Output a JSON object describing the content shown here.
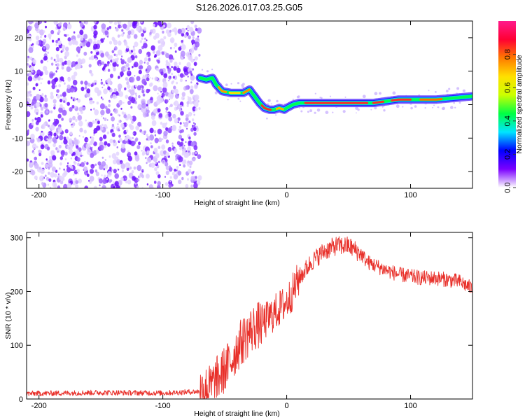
{
  "title": "S126.2026.017.03.25.G05",
  "chart_data": [
    {
      "type": "heatmap",
      "name": "spectrogram",
      "xlabel": "Height of straight line (km)",
      "ylabel": "Frequency (Hz)",
      "xlim": [
        -210,
        150
      ],
      "ylim": [
        -25,
        25
      ],
      "xticks": [
        -200,
        -100,
        0,
        100
      ],
      "yticks": [
        -20,
        -10,
        0,
        10,
        20
      ],
      "xtick_labels": [
        "-200",
        "-100",
        "0",
        "100"
      ],
      "ytick_labels": [
        "-20",
        "-10",
        "0",
        "10",
        "20"
      ],
      "noise_region_x": [
        -210,
        -70
      ],
      "ridge": {
        "x": [
          -70,
          -65,
          -60,
          -57,
          -52,
          -45,
          -40,
          -35,
          -30,
          -26,
          -22,
          -18,
          -14,
          -10,
          -6,
          -2,
          0,
          5,
          10,
          15,
          20,
          30,
          50,
          70,
          80,
          90,
          100,
          110,
          120,
          135,
          150
        ],
        "y": [
          8,
          7.5,
          8,
          6,
          4,
          3.5,
          3.5,
          3.5,
          4.5,
          2.5,
          0.5,
          -1,
          -1.5,
          -1.5,
          -1,
          -1.5,
          -1,
          0,
          0.5,
          0.5,
          0.5,
          0.5,
          0.5,
          0.5,
          1,
          1.5,
          1.5,
          1.5,
          1.5,
          2,
          2.5
        ]
      },
      "colorbar": {
        "label": "Normalized spectral amplitude",
        "range": [
          0,
          1
        ],
        "ticks": [
          0.0,
          0.2,
          0.4,
          0.6,
          0.8
        ],
        "tick_labels": [
          "0.0",
          "0.2",
          "0.4",
          "0.6",
          "0.8"
        ],
        "colors": [
          "#ffffff",
          "#7a00ff",
          "#0000ff",
          "#00e5ff",
          "#00ff44",
          "#ccff00",
          "#ffe000",
          "#ff7a00",
          "#ff0033",
          "#ff1a8c"
        ]
      }
    },
    {
      "type": "line",
      "name": "snr",
      "xlabel": "Height of straight line (km)",
      "ylabel": "SNR (10 * v/v)",
      "xlim": [
        -210,
        150
      ],
      "ylim": [
        0,
        310
      ],
      "xticks": [
        -200,
        -100,
        0,
        100
      ],
      "yticks": [
        0,
        100,
        200,
        300
      ],
      "xtick_labels": [
        "-200",
        "-100",
        "0",
        "100"
      ],
      "ytick_labels": [
        "0",
        "100",
        "200",
        "300"
      ],
      "color": "#e8302a",
      "series": [
        {
          "name": "SNR",
          "x": [
            -210,
            -150,
            -100,
            -70,
            -62,
            -55,
            -50,
            -45,
            -40,
            -35,
            -30,
            -25,
            -20,
            -15,
            -10,
            -5,
            0,
            5,
            10,
            20,
            30,
            40,
            50,
            60,
            65,
            70,
            80,
            90,
            100,
            110,
            120,
            130,
            140,
            150
          ],
          "y": [
            10,
            12,
            11,
            14,
            20,
            40,
            55,
            70,
            95,
            110,
            125,
            135,
            140,
            150,
            160,
            170,
            180,
            200,
            225,
            255,
            275,
            285,
            285,
            270,
            255,
            250,
            240,
            232,
            228,
            225,
            225,
            222,
            218,
            205
          ]
        }
      ]
    }
  ]
}
